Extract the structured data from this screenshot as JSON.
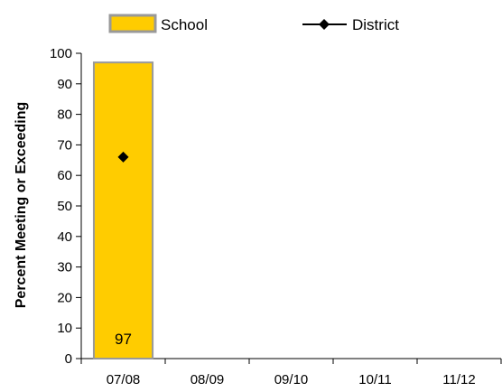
{
  "chart_data": {
    "type": "bar",
    "categories": [
      "07/08",
      "08/09",
      "09/10",
      "10/11",
      "11/12"
    ],
    "series": [
      {
        "name": "School",
        "kind": "bar",
        "values": [
          97,
          null,
          null,
          null,
          null
        ],
        "color": "#FFCC00",
        "edge_color": "#999999"
      },
      {
        "name": "District",
        "kind": "line",
        "values": [
          66,
          null,
          null,
          null,
          null
        ],
        "color": "#000000",
        "marker": "diamond"
      }
    ],
    "data_labels": [
      "97",
      "",
      "",
      "",
      ""
    ],
    "ylabel": "Percent Meeting or Exceeding",
    "ylim": [
      0,
      100
    ],
    "yticks": [
      0,
      10,
      20,
      30,
      40,
      50,
      60,
      70,
      80,
      90,
      100
    ],
    "grid": false,
    "legend_position": "top"
  }
}
